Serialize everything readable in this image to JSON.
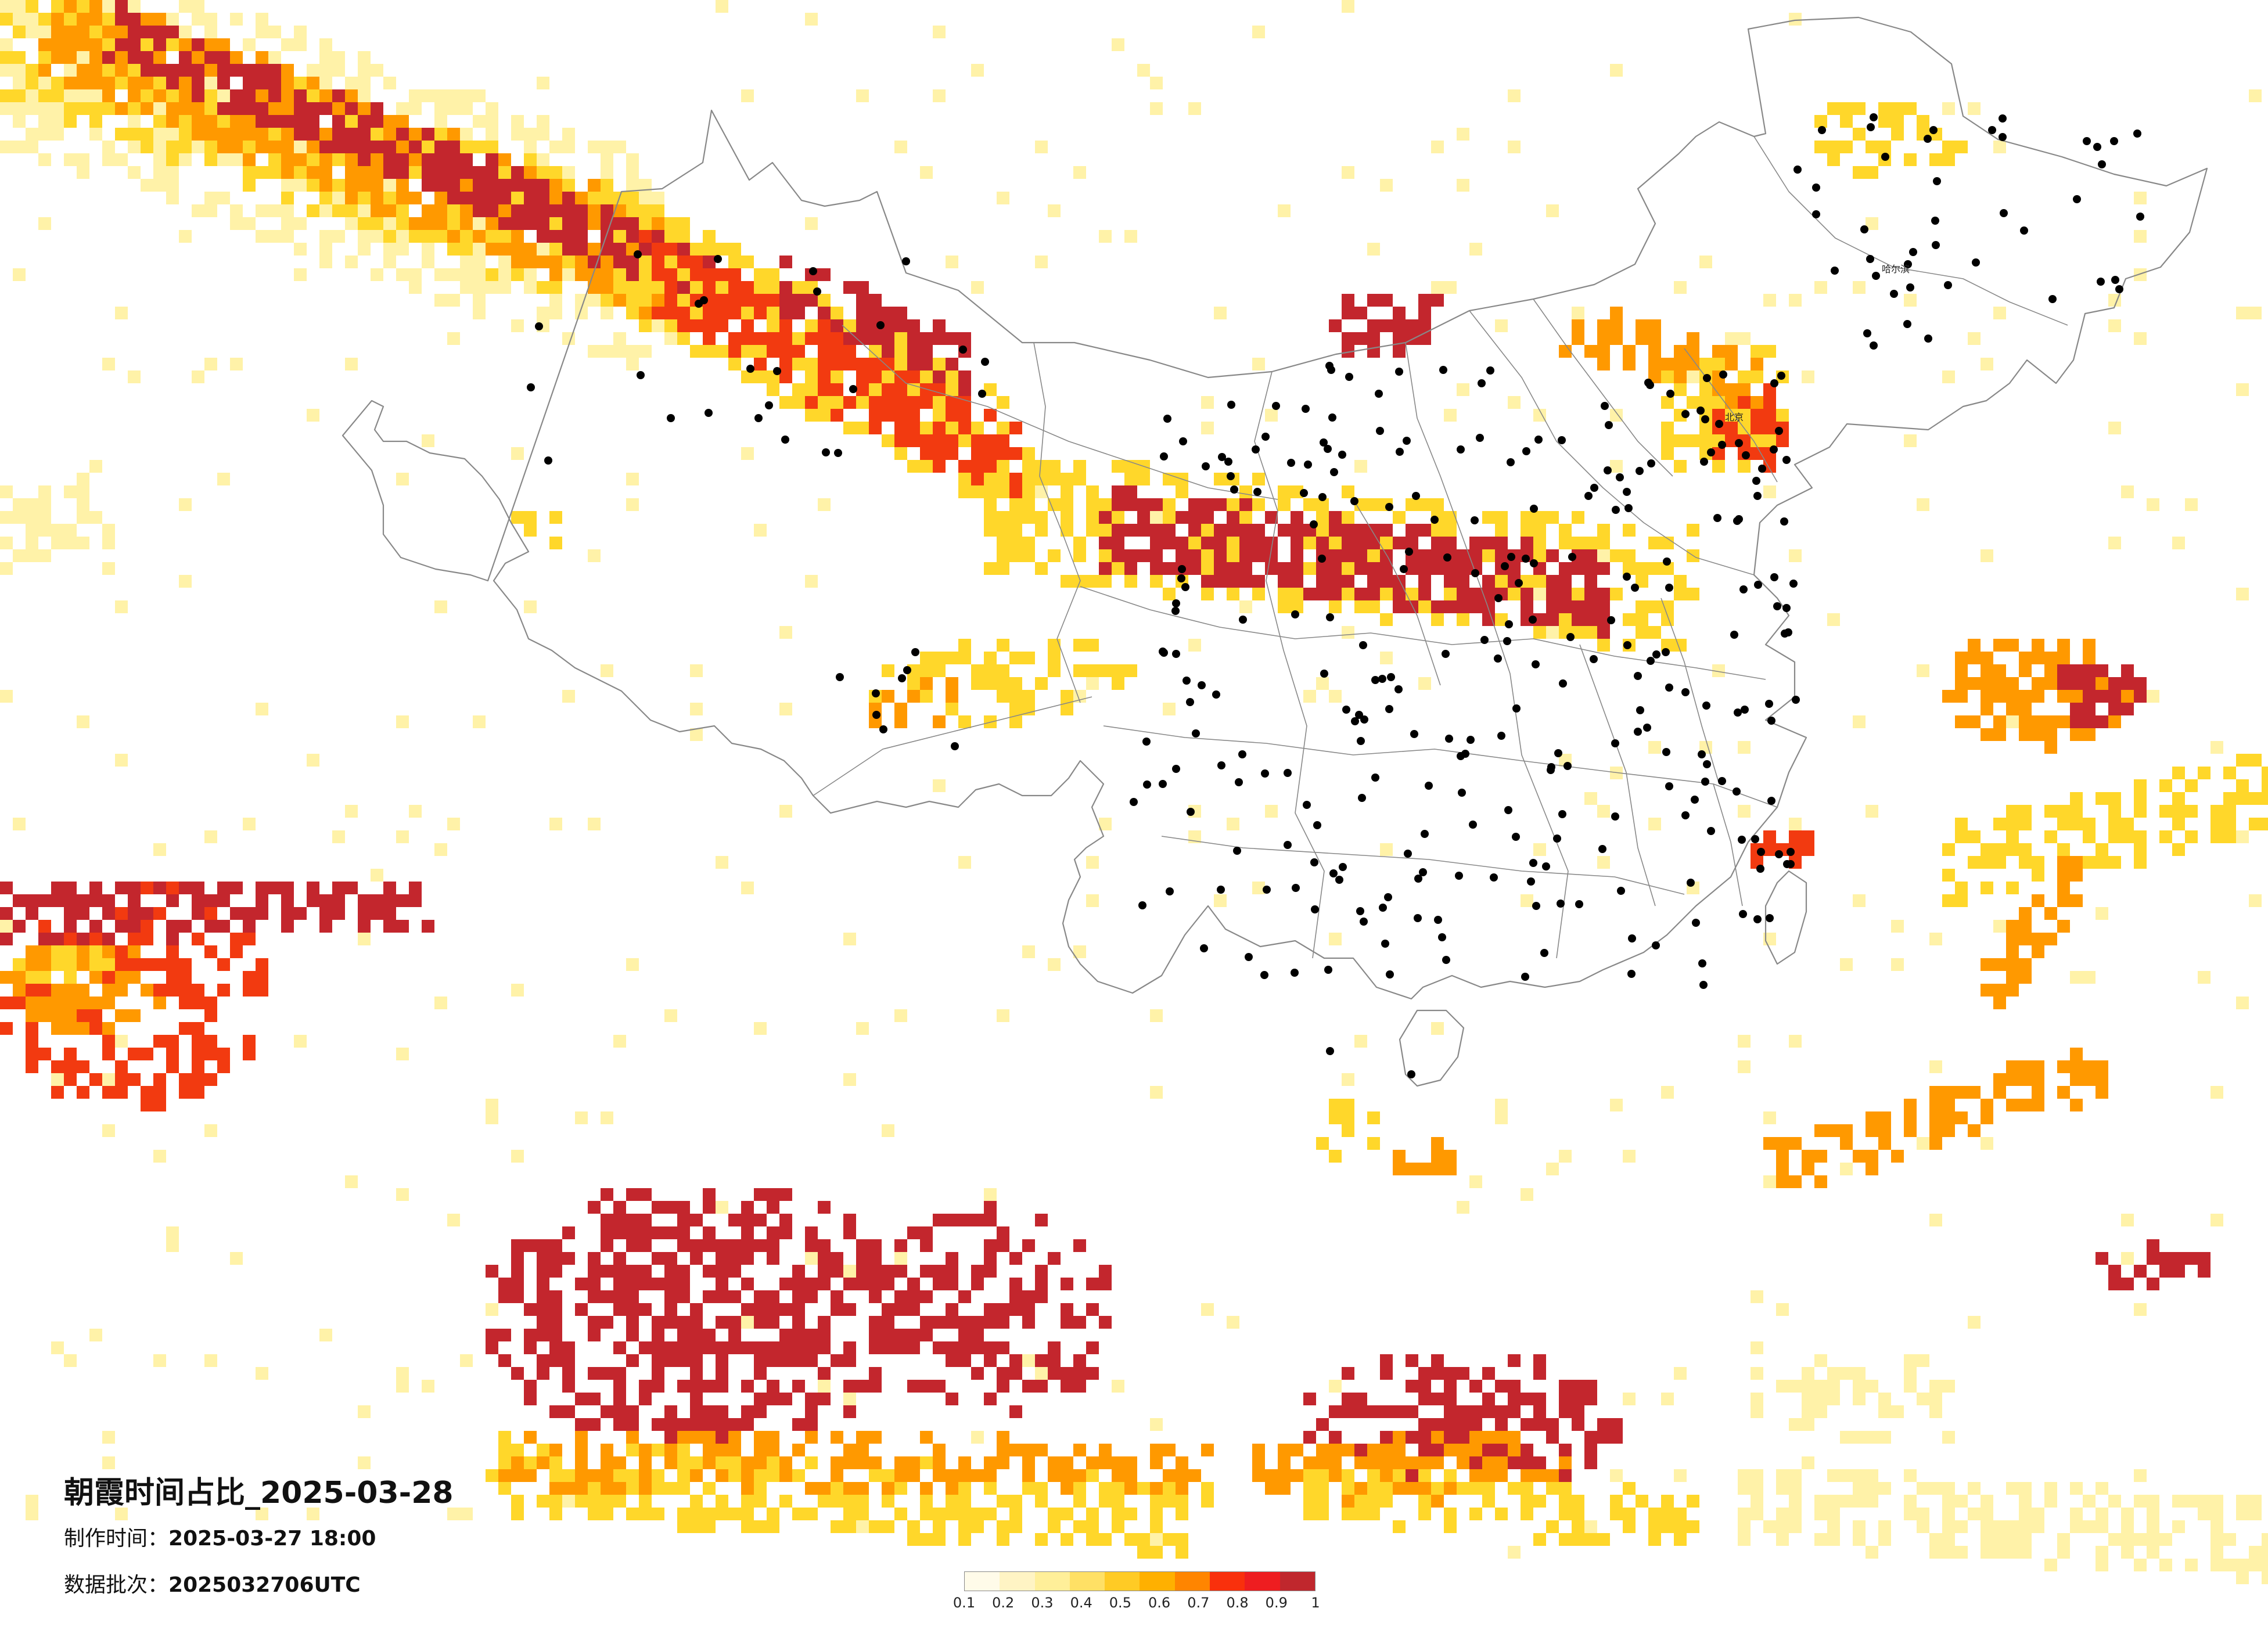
{
  "caption": {
    "title": "朝霞时间占比_2025-03-28",
    "issued_label": "制作时间：",
    "issued_value": "2025-03-27 18:00",
    "batch_label": "数据批次：",
    "batch_value": "2025032706UTC"
  },
  "legend": {
    "colors": [
      "#fffbe9",
      "#fff4c4",
      "#ffef99",
      "#ffe065",
      "#ffcb25",
      "#ffb000",
      "#ff8500",
      "#f9300c",
      "#ee1d20",
      "#c0272d"
    ],
    "ticks": [
      "0.1",
      "0.2",
      "0.3",
      "0.4",
      "0.5",
      "0.6",
      "0.7",
      "0.8",
      "0.9",
      "1"
    ]
  },
  "map": {
    "boundary_color": "#888888",
    "city_color": "#000000",
    "labelled_cities": [
      {
        "name": "哈尔滨"
      },
      {
        "name": "北京"
      }
    ],
    "colors": {
      "light_yellow": "#fff2a8",
      "yellow": "#ffd72a",
      "orange": "#ff9900",
      "red": "#f23a10",
      "crimson": "#c3262d"
    }
  }
}
